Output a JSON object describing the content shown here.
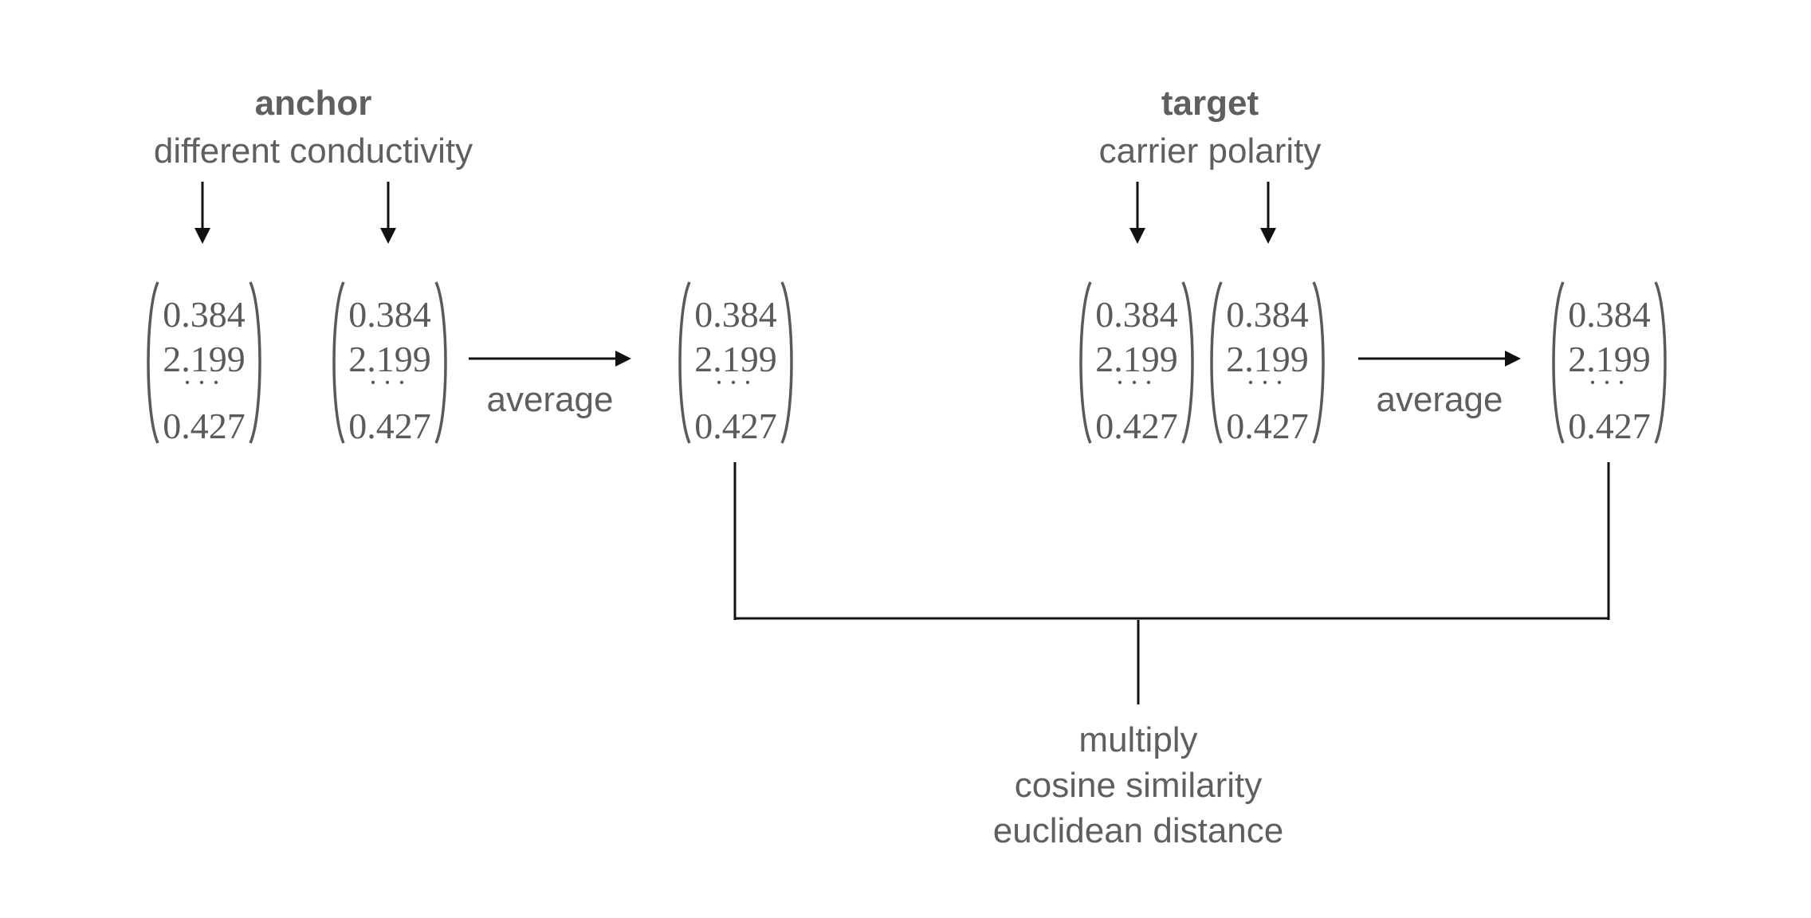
{
  "anchor": {
    "title": "anchor",
    "words": "different conductivity"
  },
  "target": {
    "title": "target",
    "words": "carrier polarity"
  },
  "operation_label": "average",
  "vector": {
    "v1": "0.384",
    "v2": "2.199",
    "ellipsis": "···",
    "v_last": "0.427"
  },
  "comparison": {
    "line1": "multiply",
    "line2": "cosine similarity",
    "line3": "euclidean distance"
  }
}
